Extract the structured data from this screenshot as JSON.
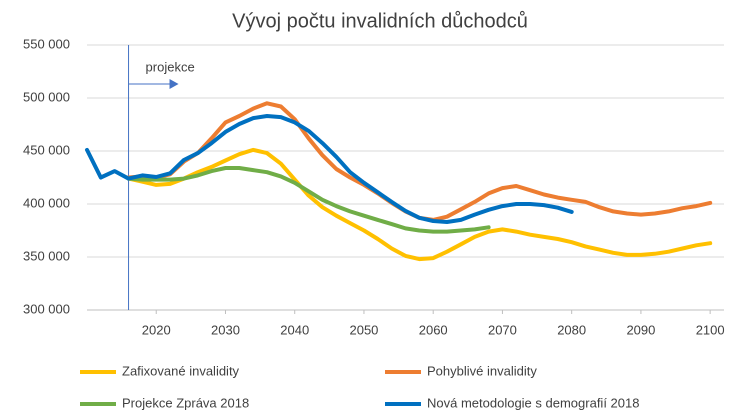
{
  "chart_data": {
    "type": "line",
    "title": "Vývoj počtu invalidních důchodců",
    "x": [
      2010,
      2012,
      2014,
      2016,
      2018,
      2020,
      2022,
      2024,
      2026,
      2028,
      2030,
      2032,
      2034,
      2036,
      2038,
      2040,
      2042,
      2044,
      2046,
      2048,
      2050,
      2052,
      2054,
      2056,
      2058,
      2060,
      2062,
      2064,
      2066,
      2068,
      2070,
      2072,
      2074,
      2076,
      2078,
      2080,
      2082,
      2084,
      2086,
      2088,
      2090,
      2092,
      2094,
      2096,
      2098,
      2100
    ],
    "series": [
      {
        "name": "Zafixované invalidity",
        "color": "#FFC000",
        "values": [
          null,
          null,
          null,
          424000,
          421000,
          418000,
          419000,
          424000,
          430000,
          435000,
          441000,
          447000,
          451000,
          448000,
          438000,
          423000,
          408000,
          397000,
          389000,
          382000,
          375000,
          367000,
          358000,
          351000,
          348000,
          349000,
          355000,
          362000,
          369000,
          374000,
          376000,
          374000,
          371000,
          369000,
          367000,
          364000,
          360000,
          357000,
          354000,
          352000,
          352000,
          353000,
          355000,
          358000,
          361000,
          363000
        ]
      },
      {
        "name": "Pohyblivé invalidity",
        "color": "#ED7D31",
        "values": [
          null,
          null,
          null,
          425000,
          426000,
          425000,
          428000,
          440000,
          448000,
          462000,
          477000,
          483000,
          490000,
          495000,
          492000,
          480000,
          462000,
          446000,
          433000,
          425000,
          418000,
          410000,
          401000,
          393000,
          387000,
          385000,
          388000,
          395000,
          402000,
          410000,
          415000,
          417000,
          413000,
          409000,
          406000,
          404000,
          402000,
          397000,
          393000,
          391000,
          390000,
          391000,
          393000,
          396000,
          398000,
          401000
        ]
      },
      {
        "name": "Projekce Zpráva 2018",
        "color": "#70AD47",
        "values": [
          null,
          null,
          null,
          424000,
          423000,
          423000,
          423000,
          424000,
          427000,
          431000,
          434000,
          434000,
          432000,
          430000,
          426000,
          420000,
          412000,
          404000,
          398000,
          393000,
          389000,
          385000,
          381000,
          377000,
          375000,
          374000,
          374000,
          375000,
          376000,
          378000,
          null,
          null,
          null,
          null,
          null,
          null,
          null,
          null,
          null,
          null,
          null,
          null,
          null,
          null,
          null,
          null
        ]
      },
      {
        "name": "Nová metodologie s demografií 2018",
        "color": "#0070C0",
        "values": [
          451000,
          425000,
          431000,
          424000,
          427000,
          425500,
          429000,
          441500,
          448000,
          457500,
          468000,
          475500,
          481000,
          483000,
          482000,
          477000,
          469000,
          457500,
          444500,
          430000,
          420000,
          411000,
          402000,
          393500,
          387000,
          384000,
          383000,
          385000,
          390000,
          394500,
          398000,
          400000,
          400000,
          399000,
          396500,
          392500,
          null,
          null,
          null,
          null,
          null,
          null,
          null,
          null,
          null,
          null
        ]
      }
    ],
    "xlim": [
      2010,
      2102
    ],
    "ylim": [
      300000,
      550000
    ],
    "xticks": [
      2020,
      2030,
      2040,
      2050,
      2060,
      2070,
      2080,
      2090,
      2100
    ],
    "yticks": [
      {
        "value": 300000,
        "label": "300 000"
      },
      {
        "value": 350000,
        "label": "350 000"
      },
      {
        "value": 400000,
        "label": "400 000"
      },
      {
        "value": 450000,
        "label": "450 000"
      },
      {
        "value": 500000,
        "label": "500 000"
      },
      {
        "value": 550000,
        "label": "550 000"
      }
    ],
    "grid": true,
    "projection_start": 2016,
    "annotation": "projekce"
  }
}
